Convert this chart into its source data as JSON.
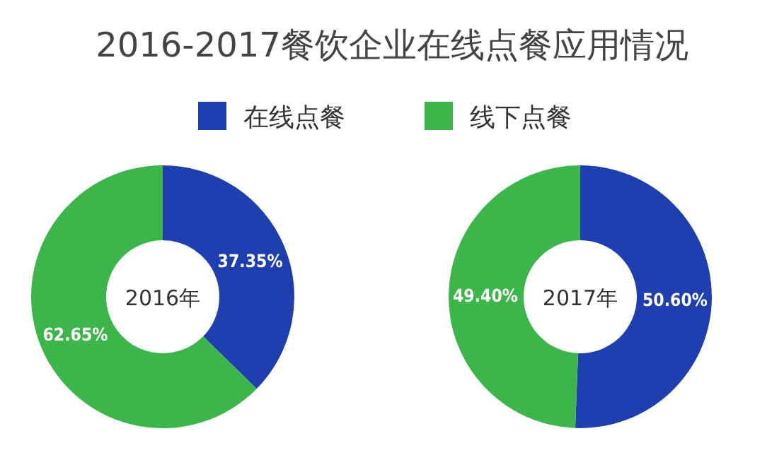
{
  "chart_data": [
    {
      "type": "donut",
      "title": "2016-2017餐饮企业在线点餐应用情况",
      "legend": "top",
      "categories": [
        "在线点餐",
        "线下点餐"
      ],
      "values": [
        37.35,
        62.65
      ],
      "value_labels": [
        "37.35%",
        "62.65%"
      ],
      "colors": [
        "#1f3fb0",
        "#3cb54a"
      ],
      "annotations": [
        "2016年"
      ]
    },
    {
      "type": "donut",
      "values": [
        50.6,
        49.4
      ],
      "value_labels": [
        "50.60%",
        "49.40%"
      ],
      "colors": [
        "#1f3fb0",
        "#3cb54a"
      ],
      "annotations": [
        "2017年"
      ]
    }
  ]
}
